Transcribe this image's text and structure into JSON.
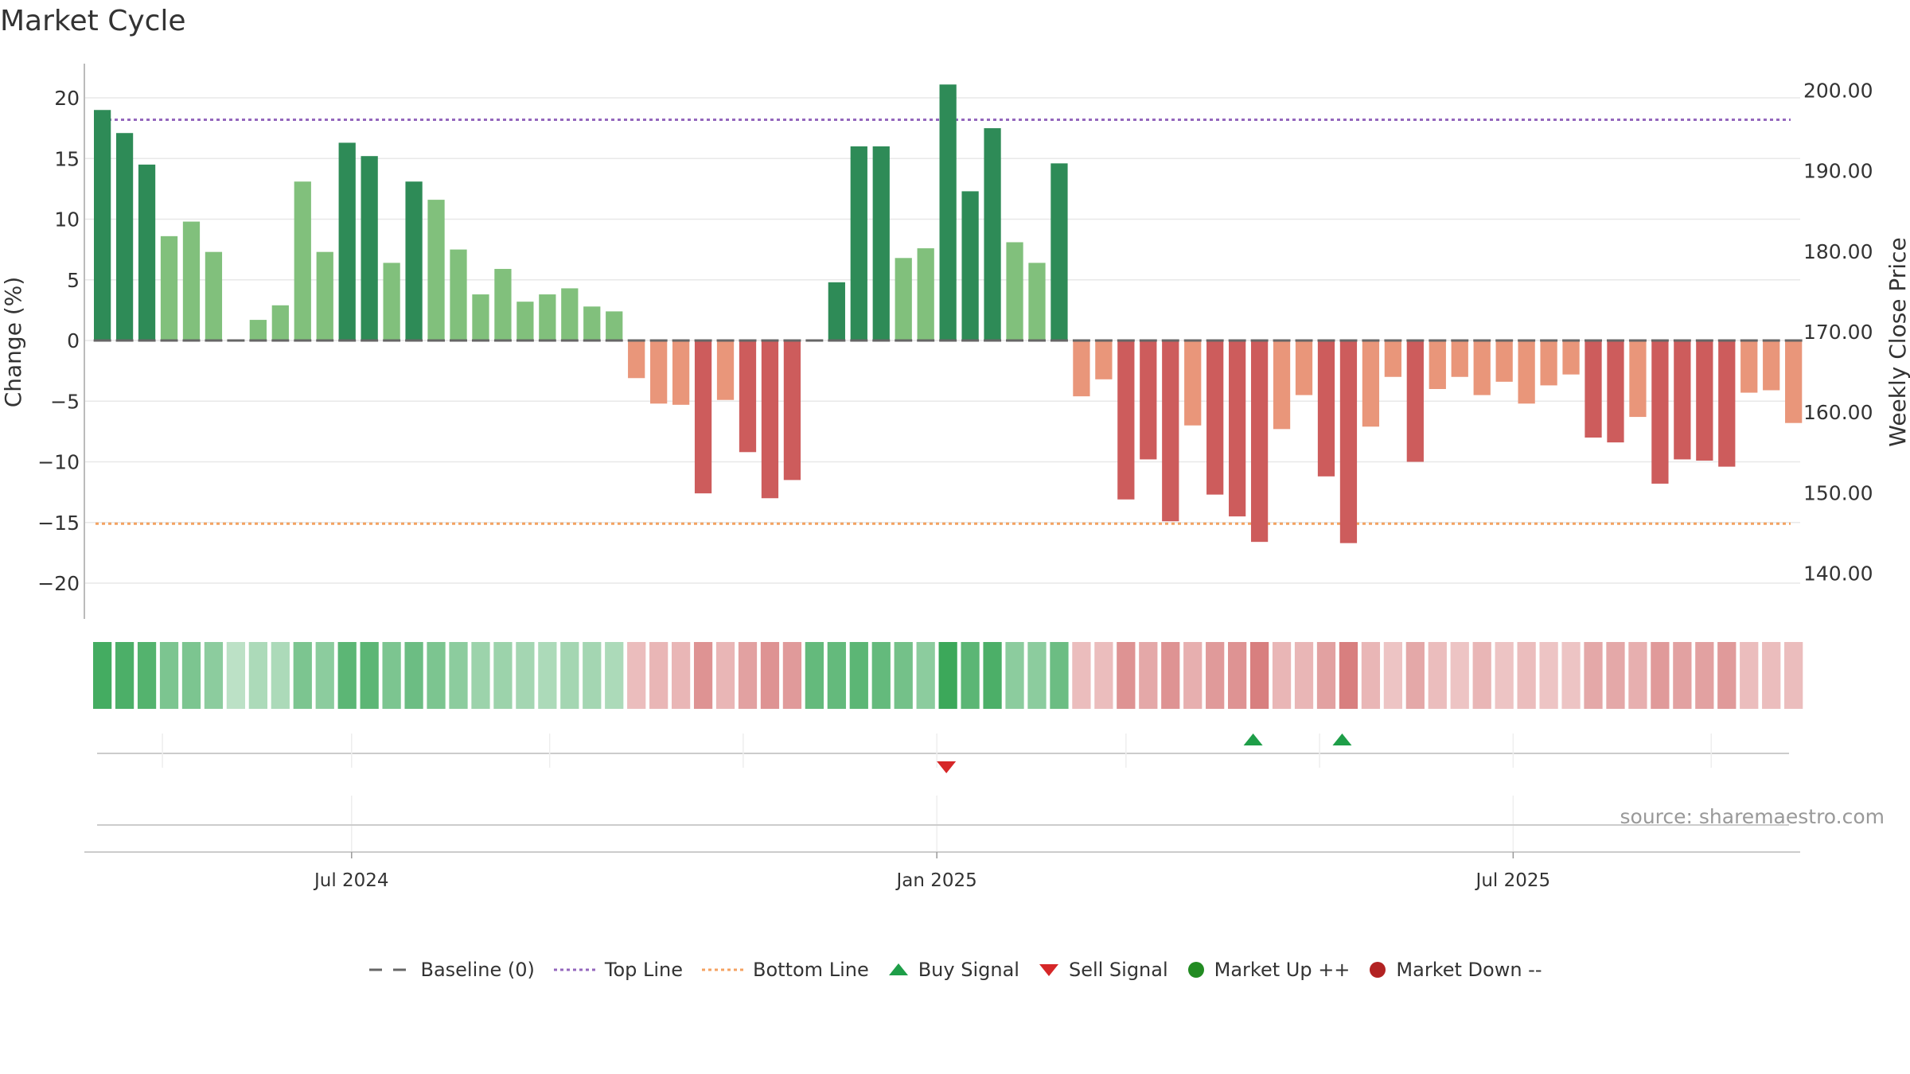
{
  "chart_data": {
    "type": "bar",
    "title": "Market Cycle",
    "ylabel": "Change (%)",
    "y2label": "Weekly Close Price",
    "ylim": [
      -23,
      23
    ],
    "yticks": [
      20,
      15,
      10,
      5,
      0,
      -5,
      -10,
      -15,
      -20
    ],
    "ytick_labels": [
      "20",
      "15",
      "10",
      "5",
      "0",
      "−5",
      "−10",
      "−15",
      "−20"
    ],
    "y2ticks": [
      200,
      190,
      180,
      170,
      160,
      150,
      140
    ],
    "y2tick_labels": [
      "200.00",
      "190.00",
      "180.00",
      "170.00",
      "160.00",
      "150.00",
      "140.00"
    ],
    "y2lim": [
      134.5,
      205.5
    ],
    "top_line": 18.2,
    "bottom_line": -15.1,
    "values": [
      19.0,
      17.1,
      14.5,
      8.6,
      9.8,
      7.3,
      0,
      1.7,
      2.9,
      13.1,
      7.3,
      16.3,
      15.2,
      6.4,
      13.1,
      11.6,
      7.5,
      3.8,
      5.9,
      3.2,
      3.8,
      4.3,
      2.8,
      2.4,
      -3.1,
      -5.2,
      -5.3,
      -12.6,
      -4.9,
      -9.2,
      -13.0,
      -11.5,
      0,
      4.8,
      16.0,
      16.0,
      6.8,
      7.6,
      21.1,
      12.3,
      17.5,
      8.1,
      6.4,
      14.6,
      -4.6,
      -3.2,
      -13.1,
      -9.8,
      -14.9,
      -7.0,
      -12.7,
      -14.5,
      -16.6,
      -7.3,
      -4.5,
      -11.2,
      -16.7,
      -7.1,
      -3.0,
      -10.0,
      -4.0,
      -3.0,
      -4.5,
      -3.4,
      -5.2,
      -3.7,
      -2.8,
      -8.0,
      -8.4,
      -6.3,
      -11.8,
      -9.8,
      -9.9,
      -10.4,
      -4.3,
      -4.1,
      -6.8
    ],
    "strength": [
      0.95,
      0.9,
      0.85,
      0.6,
      0.6,
      0.5,
      0.2,
      0.3,
      0.3,
      0.6,
      0.5,
      0.8,
      0.8,
      0.6,
      0.7,
      0.6,
      0.5,
      0.4,
      0.4,
      0.35,
      0.3,
      0.35,
      0.35,
      0.3,
      0.3,
      0.35,
      0.35,
      0.6,
      0.35,
      0.5,
      0.6,
      0.55,
      0.75,
      0.75,
      0.8,
      0.75,
      0.65,
      0.5,
      1.0,
      0.8,
      0.9,
      0.5,
      0.5,
      0.7,
      0.3,
      0.3,
      0.6,
      0.45,
      0.6,
      0.4,
      0.55,
      0.6,
      0.75,
      0.35,
      0.35,
      0.5,
      0.75,
      0.35,
      0.25,
      0.45,
      0.3,
      0.25,
      0.35,
      0.25,
      0.3,
      0.25,
      0.25,
      0.45,
      0.45,
      0.4,
      0.55,
      0.5,
      0.5,
      0.55,
      0.3,
      0.3,
      0.3
    ],
    "buy_signals": [
      52,
      56
    ],
    "sell_signals": [
      38
    ],
    "xaxis_labels": [
      {
        "label": "Jul 2024",
        "bar": 11.2
      },
      {
        "label": "Jan 2025",
        "bar": 37.5
      },
      {
        "label": "Jul 2025",
        "bar": 63.4
      }
    ],
    "signal_gridlines": [
      2.7,
      11.2,
      20.1,
      28.8,
      37.5,
      46.0,
      54.7,
      63.4,
      72.3
    ],
    "colors": {
      "up_strong": "#2e8b57",
      "up_light": "#81c07c",
      "down_strong": "#cd5c5c",
      "down_light": "#e9967a",
      "top_line": "#9467bd",
      "bottom_line": "#f4a261",
      "baseline": "#666666",
      "buy": "#1e9e48",
      "sell": "#d62728",
      "market_up": "#228b22",
      "market_down": "#b22222"
    },
    "source": "source: sharemaestro.com",
    "legend": [
      "Baseline (0)",
      "Top Line",
      "Bottom Line",
      "Buy Signal",
      "Sell Signal",
      "Market Up ++",
      "Market Down --"
    ]
  }
}
